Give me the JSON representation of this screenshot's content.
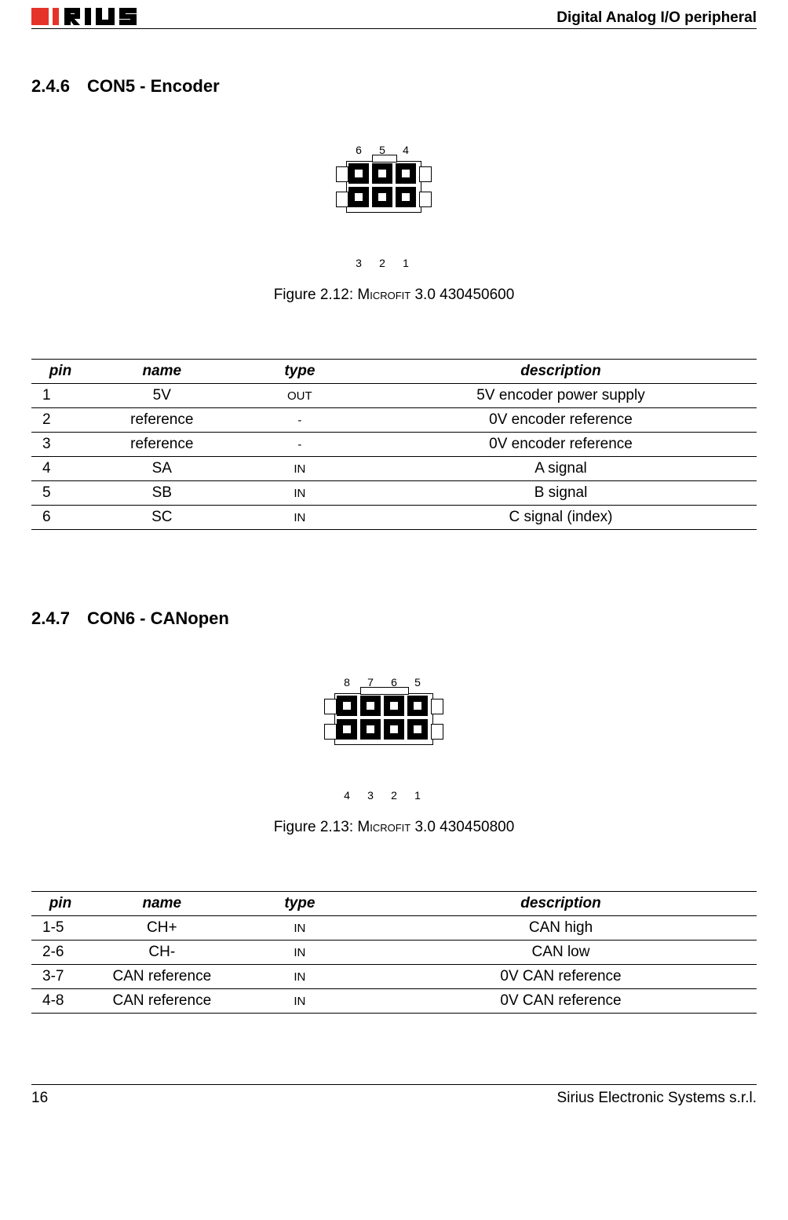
{
  "header": {
    "title": "Digital Analog I/O peripheral",
    "logo_text_accent": "SI",
    "logo_text_rest": "rIUS",
    "accent_color": "#e6332a"
  },
  "section1": {
    "number": "2.4.6",
    "title": "CON5 - Encoder",
    "figure_caption_prefix": "Figure 2.12: ",
    "figure_caption_sc": "Microfit",
    "figure_caption_rest": " 3.0 430450600",
    "connector": {
      "cols": 3,
      "rows": 2,
      "top_labels": [
        "6",
        "5",
        "4"
      ],
      "bottom_labels": [
        "3",
        "2",
        "1"
      ]
    },
    "table": {
      "headers": [
        "pin",
        "name",
        "type",
        "description"
      ],
      "rows": [
        {
          "pin": "1",
          "name": "5V",
          "type": "OUT",
          "desc": "5V encoder power supply"
        },
        {
          "pin": "2",
          "name": "reference",
          "type": "-",
          "desc": "0V encoder reference"
        },
        {
          "pin": "3",
          "name": "reference",
          "type": "-",
          "desc": "0V encoder reference"
        },
        {
          "pin": "4",
          "name": "SA",
          "type": "IN",
          "desc": "A signal"
        },
        {
          "pin": "5",
          "name": "SB",
          "type": "IN",
          "desc": "B signal"
        },
        {
          "pin": "6",
          "name": "SC",
          "type": "IN",
          "desc": "C signal (index)"
        }
      ]
    }
  },
  "section2": {
    "number": "2.4.7",
    "title": "CON6 - CANopen",
    "figure_caption_prefix": "Figure 2.13: ",
    "figure_caption_sc": "Microfit",
    "figure_caption_rest": " 3.0 430450800",
    "connector": {
      "cols": 4,
      "rows": 2,
      "top_labels": [
        "8",
        "7",
        "6",
        "5"
      ],
      "bottom_labels": [
        "4",
        "3",
        "2",
        "1"
      ]
    },
    "table": {
      "headers": [
        "pin",
        "name",
        "type",
        "description"
      ],
      "rows": [
        {
          "pin": "1-5",
          "name": "CH+",
          "type": "IN",
          "desc": "CAN high"
        },
        {
          "pin": "2-6",
          "name": "CH-",
          "type": "IN",
          "desc": "CAN low"
        },
        {
          "pin": "3-7",
          "name": "CAN reference",
          "type": "IN",
          "desc": "0V CAN reference"
        },
        {
          "pin": "4-8",
          "name": "CAN reference",
          "type": "IN",
          "desc": "0V CAN reference"
        }
      ]
    }
  },
  "footer": {
    "page_number": "16",
    "company": "Sirius Electronic Systems s.r.l."
  }
}
